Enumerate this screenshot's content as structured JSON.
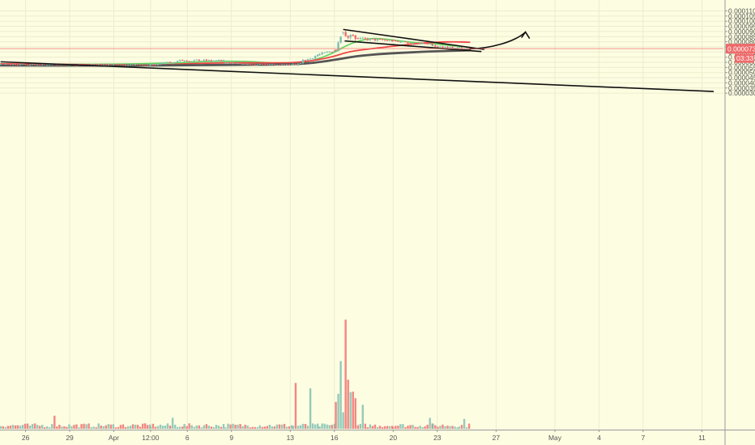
{
  "chart_data": {
    "type": "candlestick",
    "title": "",
    "xlabel": "",
    "ylabel": "",
    "ylim": [
      2.95e-05,
      0.000112
    ],
    "grid": true,
    "y_ticks": [
      {
        "value": 0.00011,
        "label": "0.0001100"
      },
      {
        "value": 0.000105,
        "label": "0.0001050"
      },
      {
        "value": 0.0001,
        "label": "0.0001000"
      },
      {
        "value": 9.5e-05,
        "label": "0.0000950"
      },
      {
        "value": 9e-05,
        "label": "0.0000900"
      },
      {
        "value": 8.5e-05,
        "label": "0.0000850"
      },
      {
        "value": 8e-05,
        "label": "0.0000800"
      },
      {
        "value": 7.5e-05,
        "label": "0.0000750"
      },
      {
        "value": 7e-05,
        "label": "0.0000700"
      },
      {
        "value": 6.5e-05,
        "label": "0.0000650"
      },
      {
        "value": 6e-05,
        "label": "0.0000600"
      },
      {
        "value": 5.5e-05,
        "label": "0.0000550"
      },
      {
        "value": 5e-05,
        "label": "0.0000500"
      },
      {
        "value": 4.5e-05,
        "label": "0.0000450"
      },
      {
        "value": 4e-05,
        "label": "0.0000400"
      },
      {
        "value": 3.5e-05,
        "label": "0.0000350"
      },
      {
        "value": 3e-05,
        "label": "0.0000300"
      }
    ],
    "x_ticks": [
      {
        "day": -6,
        "label": "26"
      },
      {
        "day": -3,
        "label": "29"
      },
      {
        "day": 0,
        "label": "Apr"
      },
      {
        "day": 2.5,
        "label": "12:00"
      },
      {
        "day": 5,
        "label": "6"
      },
      {
        "day": 8,
        "label": "9"
      },
      {
        "day": 12,
        "label": "13"
      },
      {
        "day": 15,
        "label": "16"
      },
      {
        "day": 19,
        "label": "20"
      },
      {
        "day": 22,
        "label": "23"
      },
      {
        "day": 26,
        "label": "27"
      },
      {
        "day": 30,
        "label": "May"
      },
      {
        "day": 33,
        "label": "4"
      },
      {
        "day": 36,
        "label": "7"
      },
      {
        "day": 40,
        "label": "11"
      }
    ],
    "current_price": {
      "value": 7.33e-05,
      "label": "0.0000733",
      "countdown": "03:33"
    },
    "colors": {
      "up": "#7cbdb0",
      "down": "#ef6a6a",
      "ma_fast": "#5dd35d",
      "ma_mid": "#ee4444",
      "ma_slow": "#555555",
      "price_line": "#ef6a6a",
      "drawing": "#111111",
      "background": "#fdfde2",
      "grid": "#ecedcd"
    },
    "segments": [
      {
        "d0": -7.7,
        "d1": 2.5,
        "p0": 5.8e-05,
        "p1": 5.73e-05,
        "noise": 9e-07
      },
      {
        "d0": 2.5,
        "d1": 4.8,
        "p0": 5.73e-05,
        "p1": 6.2e-05,
        "noise": 1.2e-06
      },
      {
        "d0": 4.8,
        "d1": 7.6,
        "p0": 6.2e-05,
        "p1": 6.13e-05,
        "noise": 1.2e-06
      },
      {
        "d0": 7.6,
        "d1": 12.2,
        "p0": 5.9e-05,
        "p1": 5.75e-05,
        "noise": 7e-07
      },
      {
        "d0": 12.2,
        "d1": 14.0,
        "p0": 5.75e-05,
        "p1": 6.75e-05,
        "noise": 1.5e-06
      },
      {
        "d0": 14.0,
        "d1": 15.1,
        "p0": 6.75e-05,
        "p1": 7.2e-05,
        "noise": 1.5e-06
      },
      {
        "d0": 15.1,
        "d1": 15.6,
        "p0": 7.2e-05,
        "p1": 9e-05,
        "noise": 2e-06
      },
      {
        "d0": 15.6,
        "d1": 16.6,
        "p0": 8.8e-05,
        "p1": 8.3e-05,
        "noise": 3e-06
      },
      {
        "d0": 16.6,
        "d1": 19.0,
        "p0": 8.3e-05,
        "p1": 8.1e-05,
        "noise": 1.5e-06
      },
      {
        "d0": 19.0,
        "d1": 21.7,
        "p0": 8.1e-05,
        "p1": 7.7e-05,
        "noise": 1.4e-06
      },
      {
        "d0": 21.7,
        "d1": 23.5,
        "p0": 7.6e-05,
        "p1": 7.38e-05,
        "noise": 1e-06
      },
      {
        "d0": 23.5,
        "d1": 24.2,
        "p0": 7.38e-05,
        "p1": 7.33e-05,
        "noise": 1e-06
      }
    ],
    "volume": {
      "base": 4e-08,
      "spikes": [
        {
          "day": 15.7,
          "value": 1.0
        },
        {
          "day": 15.5,
          "value": 0.62
        },
        {
          "day": 15.9,
          "value": 0.45
        },
        {
          "day": 15.3,
          "value": 0.32
        },
        {
          "day": 12.3,
          "value": 0.42
        },
        {
          "day": 13.4,
          "value": 0.37
        },
        {
          "day": 16.5,
          "value": 0.28
        },
        {
          "day": 17.0,
          "value": 0.22
        },
        {
          "day": -4.0,
          "value": 0.12
        },
        {
          "day": 4.0,
          "value": 0.1
        },
        {
          "day": 21.5,
          "value": 0.1
        },
        {
          "day": 23.8,
          "value": 0.09
        }
      ]
    },
    "moving_averages": [
      {
        "points": [
          [
            -7.7,
            5.83e-05
          ],
          [
            0,
            5.8e-05
          ],
          [
            4.5,
            5.95e-05
          ],
          [
            6.5,
            6.1e-05
          ],
          [
            9,
            6.1e-05
          ],
          [
            11,
            5.92e-05
          ],
          [
            12.2,
            5.77e-05
          ],
          [
            13.5,
            6.15e-05
          ],
          [
            14.8,
            6.8e-05
          ],
          [
            15.9,
            7.7e-05
          ],
          [
            16.8,
            8.15e-05
          ],
          [
            17.6,
            8.35e-05
          ],
          [
            18.6,
            8.25e-05
          ],
          [
            19.6,
            8.05e-05
          ],
          [
            20.6,
            7.9e-05
          ],
          [
            21.8,
            7.8e-05
          ],
          [
            23.0,
            7.62e-05
          ],
          [
            24.2,
            7.45e-05
          ]
        ]
      },
      {
        "points": [
          [
            -7.7,
            5.85e-05
          ],
          [
            0,
            5.75e-05
          ],
          [
            3,
            5.72e-05
          ],
          [
            5,
            5.87e-05
          ],
          [
            7.5,
            5.95e-05
          ],
          [
            10,
            5.95e-05
          ],
          [
            12.2,
            5.95e-05
          ],
          [
            13.5,
            6.15e-05
          ],
          [
            14.8,
            6.5e-05
          ],
          [
            15.9,
            7e-05
          ],
          [
            16.8,
            7.2e-05
          ],
          [
            18.0,
            7.4e-05
          ],
          [
            19.5,
            7.65e-05
          ],
          [
            20.8,
            7.85e-05
          ],
          [
            22.0,
            7.97e-05
          ],
          [
            23.3,
            8e-05
          ],
          [
            24.2,
            7.95e-05
          ]
        ]
      },
      {
        "points": [
          [
            -7.7,
            5.7e-05
          ],
          [
            0,
            5.68e-05
          ],
          [
            4,
            5.7e-05
          ],
          [
            8,
            5.75e-05
          ],
          [
            11,
            5.78e-05
          ],
          [
            12.5,
            5.82e-05
          ],
          [
            13.8,
            5.98e-05
          ],
          [
            15.3,
            6.3e-05
          ],
          [
            16.5,
            6.6e-05
          ],
          [
            18.0,
            6.8e-05
          ],
          [
            19.5,
            6.92e-05
          ],
          [
            21.0,
            7.02e-05
          ],
          [
            22.5,
            7.1e-05
          ],
          [
            24.2,
            7.17e-05
          ]
        ]
      }
    ],
    "drawings": [
      {
        "type": "line",
        "from": [
          -7.7,
          6.05e-05
        ],
        "to": [
          40.8,
          3.16e-05
        ]
      },
      {
        "type": "line",
        "from": [
          15.6,
          9.2e-05
        ],
        "to": [
          25.2,
          7.25e-05
        ]
      },
      {
        "type": "line",
        "from": [
          15.7,
          8.08e-05
        ],
        "to": [
          25.0,
          7.05e-05
        ]
      },
      {
        "type": "arrow",
        "path": [
          [
            24.2,
            7.3e-05
          ],
          [
            25.5,
            7.35e-05
          ],
          [
            27.2,
            7.9e-05
          ],
          [
            28.0,
            8.95e-05
          ]
        ]
      }
    ]
  }
}
